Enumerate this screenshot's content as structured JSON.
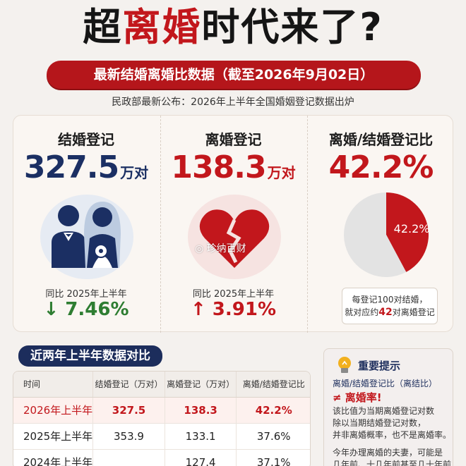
{
  "header": {
    "title_prefix": "超",
    "title_red": "离婚",
    "title_suffix": "时代来了?",
    "subtitle": "最新结婚离婚比数据（截至2026年9月02日）",
    "source": "民政部最新公布：2026年上半年全国婚姻登记数据出炉"
  },
  "stats": {
    "marriage": {
      "label": "结婚登记",
      "value": "327.5",
      "unit": "万对",
      "yoy_label": "同比 2025年上半年",
      "change": "↓ 7.46%"
    },
    "divorce": {
      "label": "离婚登记",
      "value": "138.3",
      "unit": "万对",
      "yoy_label": "同比 2025年上半年",
      "change": "↑ 3.91%"
    },
    "ratio": {
      "label": "离婚/结婚登记比",
      "value": "42.2%",
      "pie_label": "42.2%",
      "note_line1": "每登记100对结婚，",
      "note_pre": "就对应约",
      "note_hl": "42",
      "note_post": "对离婚登记"
    }
  },
  "watermark": "珍纳百财",
  "table": {
    "heading": "近两年上半年数据对比",
    "headers": [
      "时间",
      "结婚登记（万对）",
      "离婚登记（万对）",
      "离婚/结婚登记比"
    ],
    "rows": [
      [
        "2026年上半年",
        "327.5",
        "138.3",
        "42.2%"
      ],
      [
        "2025年上半年",
        "353.9",
        "133.1",
        "37.6%"
      ],
      [
        "2024年上半年",
        "",
        "127.4",
        "37.1%"
      ]
    ]
  },
  "tip": {
    "title": "重要提示",
    "line1": "离婚/结婚登记比（离结比）",
    "line2": "≠ 离婚率!",
    "body1": [
      "该比值为当期离婚登记对数",
      "除以当期结婚登记对数，",
      "并非离婚概率，也不是离婚率。"
    ],
    "body2": [
      "今年办理离婚的夫妻，可能是",
      "几年前、十几年前甚至几十年前"
    ]
  },
  "chart_data": {
    "type": "pie",
    "title": "离婚/结婚登记比",
    "slices": [
      {
        "label": "42.2%",
        "value": 42.2,
        "color": "#c2171c"
      },
      {
        "label": "",
        "value": 57.8,
        "color": "#e3e3e3"
      }
    ],
    "colors": {
      "accent": "#c2171c",
      "navy": "#1b2f63",
      "down": "#2e7d32",
      "rest": "#e3e3e3"
    }
  }
}
